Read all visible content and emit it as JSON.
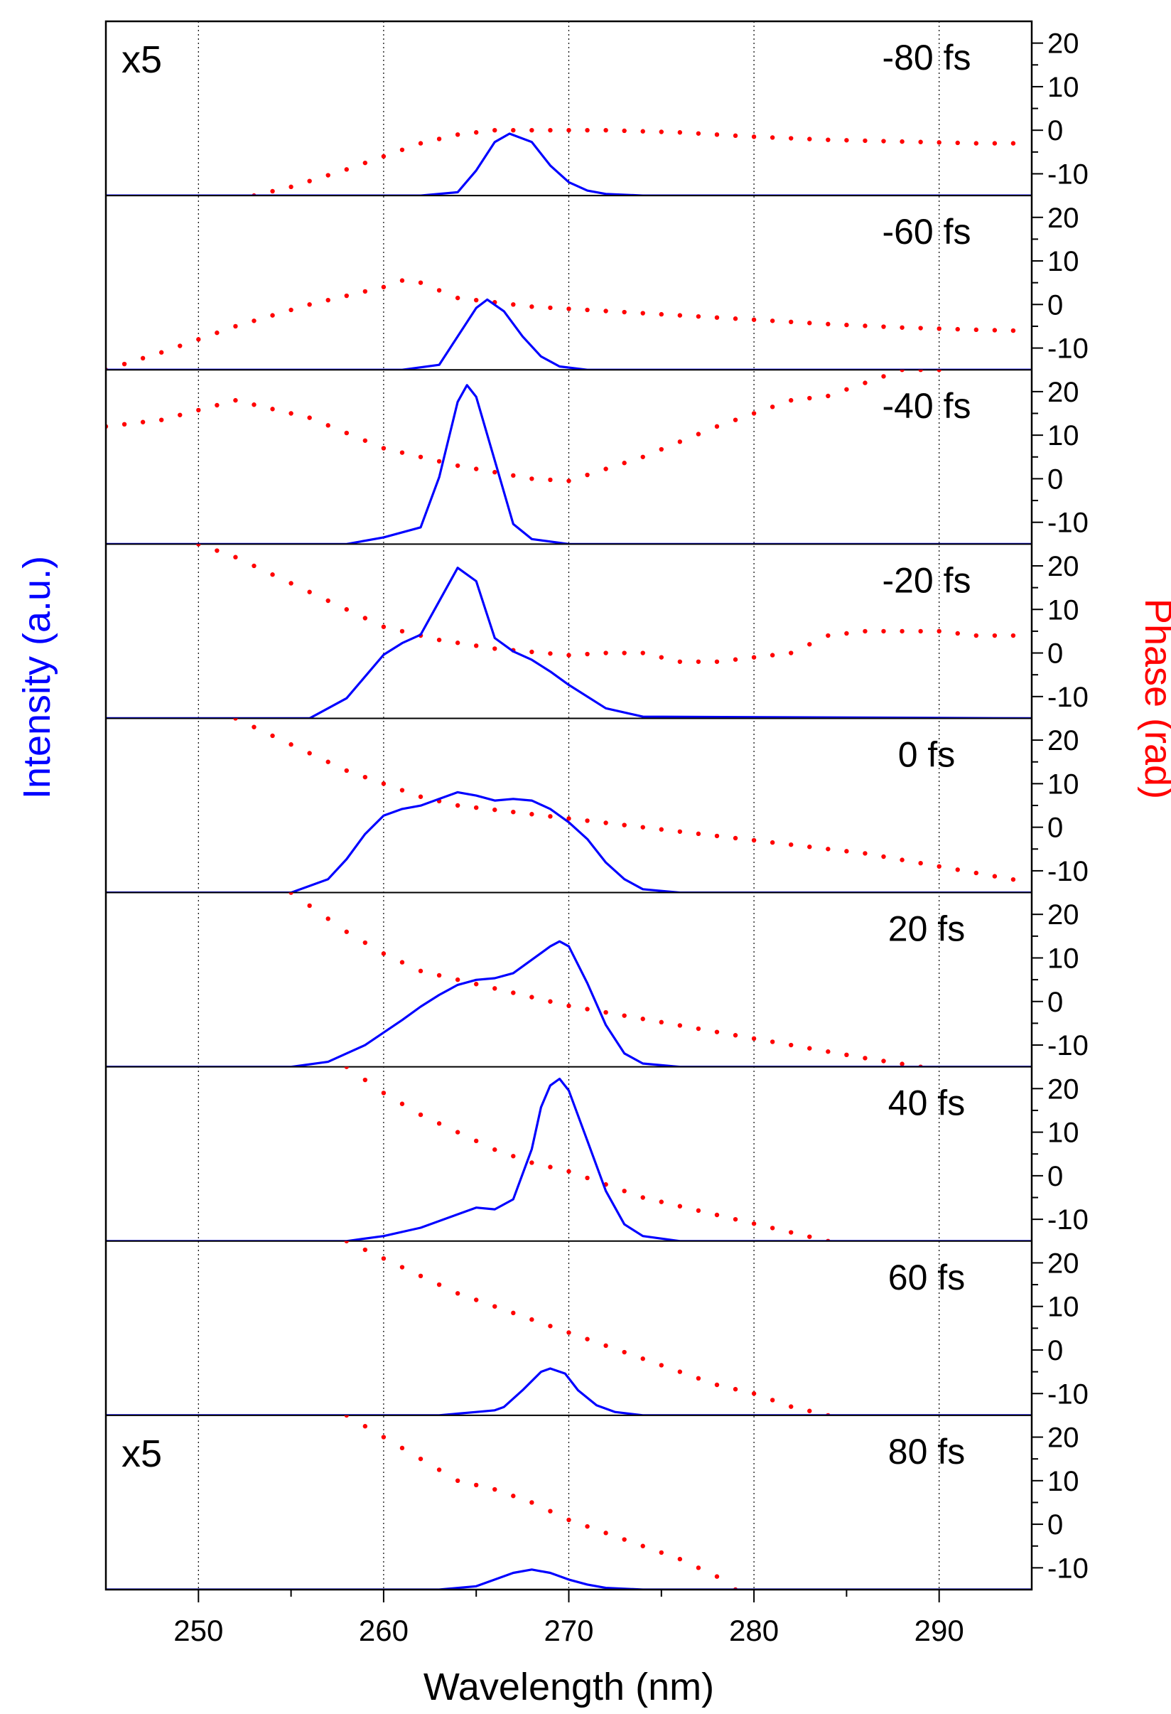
{
  "chart_data": {
    "type": "line",
    "xlabel": "Wavelength (nm)",
    "ylabel_left": "Intensity (a.u.)",
    "ylabel_right": "Phase (rad)",
    "xlim": [
      245,
      295
    ],
    "xticks": [
      250,
      260,
      270,
      280,
      290
    ],
    "phase_ylim": [
      -15,
      25
    ],
    "phase_yticks": [
      -10,
      0,
      10,
      20
    ],
    "grid": "vertical dotted",
    "colors": {
      "intensity": "#0000ff",
      "phase": "#ff0000",
      "axis": "#000000"
    },
    "panels": [
      {
        "label": "-80 fs",
        "scale_note": "x5",
        "intensity": {
          "x": [
            245,
            262,
            264,
            265,
            266,
            266.8,
            268,
            269,
            270,
            271,
            272,
            274,
            276,
            295
          ],
          "y": [
            0,
            0,
            0.02,
            0.15,
            0.32,
            0.37,
            0.32,
            0.18,
            0.08,
            0.03,
            0.01,
            0,
            0,
            0
          ]
        },
        "phase": {
          "x": [
            253,
            255,
            258,
            260,
            262,
            264,
            266,
            268,
            272,
            276,
            280,
            284,
            288,
            290,
            292,
            294
          ],
          "y": [
            -15,
            -13,
            -9,
            -6,
            -3,
            -1,
            0,
            0,
            0,
            -0.5,
            -1.5,
            -2.2,
            -2.6,
            -2.8,
            -3,
            -3
          ]
        }
      },
      {
        "label": "-60 fs",
        "scale_note": "",
        "intensity": {
          "x": [
            245,
            261,
            263,
            264,
            265,
            265.6,
            266.5,
            267.5,
            268.5,
            269.5,
            271,
            273,
            295
          ],
          "y": [
            0,
            0,
            0.03,
            0.2,
            0.37,
            0.42,
            0.35,
            0.2,
            0.08,
            0.02,
            0,
            0,
            0
          ]
        },
        "phase": {
          "x": [
            245,
            248,
            252,
            256,
            260,
            261,
            262,
            264,
            268,
            272,
            276,
            280,
            284,
            288,
            292,
            294
          ],
          "y": [
            -15,
            -11,
            -5,
            0,
            4,
            5.5,
            5,
            1.5,
            -0.5,
            -1.5,
            -2.5,
            -3.5,
            -4.5,
            -5.3,
            -5.8,
            -6
          ]
        }
      },
      {
        "label": "-40 fs",
        "scale_note": "",
        "intensity": {
          "x": [
            245,
            258,
            260,
            262,
            263,
            264,
            264.5,
            265,
            266,
            267,
            268,
            270,
            295
          ],
          "y": [
            0,
            0,
            0.04,
            0.1,
            0.4,
            0.85,
            0.95,
            0.88,
            0.5,
            0.12,
            0.03,
            0,
            0
          ]
        },
        "phase": {
          "x": [
            245,
            248,
            252,
            256,
            260,
            264,
            268,
            270,
            274,
            278,
            282,
            284,
            288,
            290
          ],
          "y": [
            12,
            13.5,
            18,
            14,
            7,
            3,
            0,
            -0.5,
            5,
            12,
            18,
            19,
            25,
            25
          ]
        }
      },
      {
        "label": "-20 fs",
        "scale_note": "",
        "intensity": {
          "x": [
            245,
            256,
            258,
            260,
            261,
            262,
            263,
            264,
            265,
            265.5,
            266,
            267,
            268,
            269,
            270,
            272,
            274,
            295
          ],
          "y": [
            0,
            0,
            0.12,
            0.38,
            0.45,
            0.5,
            0.7,
            0.9,
            0.82,
            0.65,
            0.48,
            0.4,
            0.35,
            0.28,
            0.2,
            0.06,
            0.01,
            0
          ]
        },
        "phase": {
          "x": [
            250,
            252,
            256,
            260,
            263,
            266,
            270,
            272,
            274,
            276,
            278,
            280,
            282,
            284,
            286,
            290,
            292,
            294
          ],
          "y": [
            25,
            22,
            14,
            6,
            3,
            1,
            -0.5,
            0,
            0,
            -2,
            -2,
            -1,
            0,
            4,
            5,
            5,
            4,
            4
          ]
        }
      },
      {
        "label": "0 fs",
        "scale_note": "",
        "intensity": {
          "x": [
            245,
            255,
            257,
            258,
            259,
            260,
            261,
            262,
            263,
            264,
            265,
            266,
            267,
            268,
            269,
            270,
            271,
            272,
            273,
            274,
            276,
            295
          ],
          "y": [
            0,
            0,
            0.08,
            0.2,
            0.35,
            0.46,
            0.5,
            0.52,
            0.56,
            0.6,
            0.58,
            0.55,
            0.56,
            0.55,
            0.5,
            0.42,
            0.32,
            0.18,
            0.08,
            0.02,
            0,
            0
          ]
        },
        "phase": {
          "x": [
            252,
            255,
            258,
            260,
            262,
            264,
            266,
            268,
            270,
            274,
            278,
            282,
            286,
            290,
            294
          ],
          "y": [
            25,
            19,
            13,
            10,
            7,
            5,
            4,
            3,
            2,
            0,
            -2,
            -4,
            -6,
            -9,
            -12
          ]
        }
      },
      {
        "label": "20 fs",
        "scale_note": "",
        "intensity": {
          "x": [
            245,
            255,
            257,
            259,
            261,
            262,
            263,
            264,
            265,
            266,
            267,
            268,
            269,
            269.5,
            270,
            271,
            272,
            273,
            274,
            276,
            280,
            295
          ],
          "y": [
            0,
            0,
            0.03,
            0.13,
            0.28,
            0.36,
            0.43,
            0.49,
            0.52,
            0.53,
            0.56,
            0.64,
            0.72,
            0.75,
            0.72,
            0.5,
            0.25,
            0.08,
            0.02,
            0,
            0,
            0
          ]
        },
        "phase": {
          "x": [
            255,
            258,
            260,
            262,
            264,
            266,
            268,
            270,
            274,
            278,
            282,
            286,
            289
          ],
          "y": [
            25,
            16,
            11,
            7,
            5,
            3,
            1,
            -1,
            -4,
            -7,
            -10,
            -13,
            -15
          ]
        }
      },
      {
        "label": "40 fs",
        "scale_note": "",
        "intensity": {
          "x": [
            245,
            258,
            260,
            262,
            264,
            265,
            266,
            267,
            268,
            268.5,
            269,
            269.5,
            270,
            271,
            272,
            273,
            274,
            276,
            295
          ],
          "y": [
            0,
            0,
            0.03,
            0.08,
            0.16,
            0.2,
            0.19,
            0.25,
            0.55,
            0.8,
            0.93,
            0.97,
            0.9,
            0.6,
            0.3,
            0.1,
            0.03,
            0,
            0
          ]
        },
        "phase": {
          "x": [
            258,
            260,
            262,
            264,
            266,
            268,
            270,
            272,
            274,
            276,
            278,
            280,
            282,
            284
          ],
          "y": [
            25,
            19,
            14,
            10,
            6,
            3,
            1,
            -2,
            -5,
            -7,
            -9,
            -11,
            -13,
            -15
          ]
        }
      },
      {
        "label": "60 fs",
        "scale_note": "",
        "intensity": {
          "x": [
            245,
            263,
            264,
            265,
            266,
            266.5,
            267.5,
            268.5,
            269,
            269.8,
            270.5,
            271.5,
            272.5,
            274,
            295
          ],
          "y": [
            0,
            0,
            0.01,
            0.02,
            0.03,
            0.05,
            0.15,
            0.26,
            0.28,
            0.25,
            0.15,
            0.06,
            0.02,
            0,
            0
          ]
        },
        "phase": {
          "x": [
            258,
            260,
            262,
            264,
            266,
            268,
            270,
            272,
            274,
            276,
            278,
            280,
            282,
            284
          ],
          "y": [
            25,
            21,
            17,
            13,
            10,
            7,
            4,
            1,
            -2,
            -5,
            -8,
            -10,
            -13,
            -15
          ]
        }
      },
      {
        "label": "80 fs",
        "scale_note": "x5",
        "intensity": {
          "x": [
            245,
            263,
            265,
            266,
            267,
            268,
            269,
            270,
            271,
            272,
            274,
            276,
            295
          ],
          "y": [
            0,
            0,
            0.02,
            0.06,
            0.1,
            0.12,
            0.1,
            0.06,
            0.03,
            0.01,
            0,
            0,
            0
          ]
        },
        "phase": {
          "x": [
            258,
            260,
            262,
            264,
            266,
            268,
            270,
            272,
            274,
            276,
            278,
            279
          ],
          "y": [
            25,
            20,
            15,
            10,
            8,
            5,
            1,
            -2,
            -5,
            -8,
            -12,
            -15
          ]
        }
      }
    ]
  }
}
